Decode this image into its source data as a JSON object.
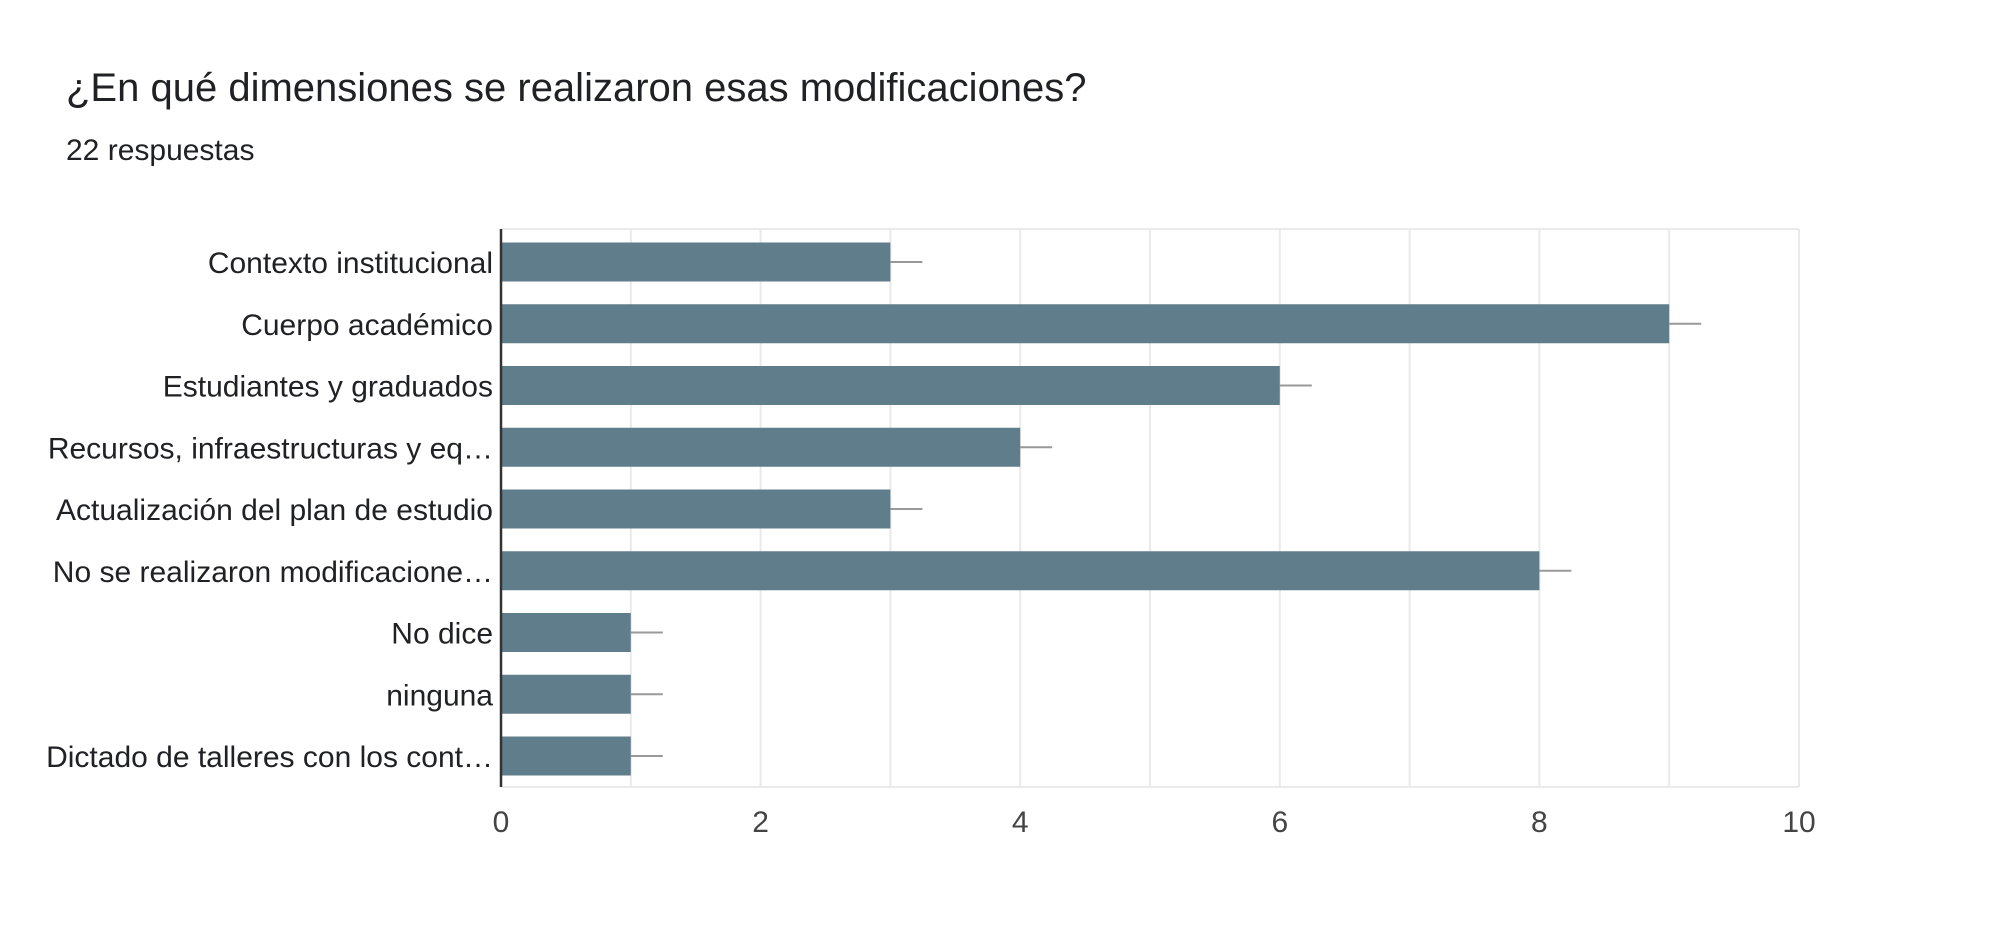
{
  "header": {
    "title": "¿En qué dimensiones se realizaron esas modificaciones?",
    "subtitle": "22 respuestas"
  },
  "colors": {
    "bar": "#607d8b",
    "grid": "#eaeaea",
    "axis": "#333333",
    "text": "#202124",
    "tick_text": "#444444",
    "error_bar": "#999999"
  },
  "chart_data": {
    "type": "bar",
    "orientation": "horizontal",
    "categories": [
      "Contexto institucional",
      "Cuerpo académico",
      "Estudiantes y graduados",
      "Recursos, infraestructuras y eq…",
      "Actualización del plan de estudio",
      "No se realizaron modificacione…",
      "No dice",
      "ninguna",
      "Dictado de talleres con los cont…"
    ],
    "values": [
      3,
      9,
      6,
      4,
      3,
      8,
      1,
      1,
      1
    ],
    "xlim": [
      0,
      10
    ],
    "x_ticks": [
      0,
      2,
      4,
      6,
      8,
      10
    ],
    "minor_gridlines_every": 1,
    "grid": true,
    "error_bars": true,
    "legend": "none",
    "xlabel": "",
    "ylabel": ""
  }
}
